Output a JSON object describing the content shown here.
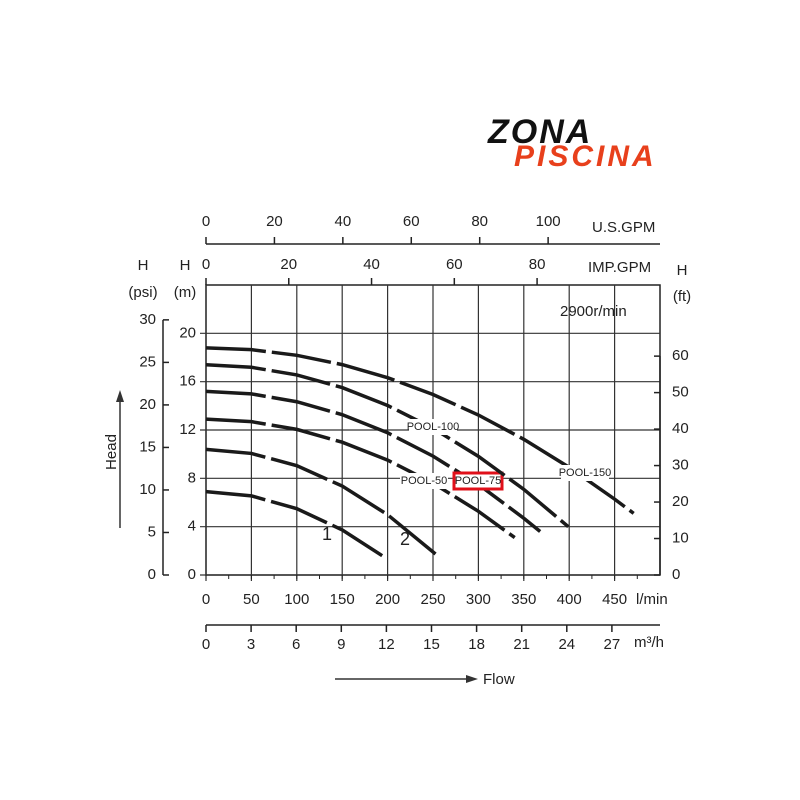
{
  "logo": {
    "line1": "ZONA",
    "line2": "PISCINA"
  },
  "chart_data": {
    "type": "line",
    "annotation": "2900r/min",
    "x_label": "l/min",
    "xlim": [
      0,
      500
    ],
    "xticks": [
      0,
      50,
      100,
      150,
      200,
      250,
      300,
      350,
      400,
      450
    ],
    "y_label_top": "H",
    "y_label": "(m)",
    "ylim": [
      0,
      24
    ],
    "yticks": [
      0,
      4,
      8,
      12,
      16,
      20
    ],
    "y2_label_top": "H",
    "y2_label": "(ft)",
    "y2lim": [
      0,
      79.5
    ],
    "y2ticks": [
      0,
      10,
      20,
      30,
      40,
      50,
      60
    ],
    "y3_label_top": "H",
    "y3_label": "(psi)",
    "y3lim": [
      0,
      34.1
    ],
    "y3ticks": [
      0,
      5,
      10,
      15,
      20,
      25,
      30
    ],
    "x2_label": "m³/h",
    "x2lim": [
      0,
      30.2
    ],
    "x2ticks": [
      0,
      3,
      6,
      9,
      12,
      15,
      18,
      21,
      24,
      27
    ],
    "x3_label": "IMP.GPM",
    "x3lim": [
      0,
      109.7
    ],
    "x3ticks": [
      0,
      20,
      40,
      60,
      80
    ],
    "x4_label": "U.S.GPM",
    "x4lim": [
      0,
      132.7
    ],
    "x4ticks": [
      0,
      20,
      40,
      60,
      80,
      100
    ],
    "head_label": "Head",
    "flow_label": "Flow",
    "grid": true,
    "series": [
      {
        "name": "1",
        "color": "#1a1a1a",
        "x": [
          0,
          50,
          100,
          150,
          194
        ],
        "values": [
          6.9,
          6.55,
          5.49,
          3.73,
          1.6
        ]
      },
      {
        "name": "2",
        "color": "#1a1a1a",
        "x": [
          0,
          50,
          100,
          150,
          200,
          255
        ],
        "values": [
          10.4,
          10.06,
          9.05,
          7.36,
          4.99,
          1.6
        ]
      },
      {
        "name": "POOL-50",
        "color": "#1a1a1a",
        "x": [
          0,
          50,
          100,
          150,
          200,
          250,
          300,
          340
        ],
        "values": [
          12.9,
          12.69,
          12.05,
          10.99,
          9.51,
          7.6,
          5.27,
          3.1
        ]
      },
      {
        "name": "POOL-75",
        "color": "#1a1a1a",
        "highlight": "#e0101a",
        "x": [
          0,
          50,
          100,
          150,
          200,
          250,
          300,
          350,
          368
        ],
        "values": [
          15.2,
          14.99,
          14.34,
          13.27,
          11.77,
          9.84,
          7.49,
          4.7,
          3.6
        ]
      },
      {
        "name": "POOL-100",
        "color": "#1a1a1a",
        "x": [
          0,
          50,
          100,
          150,
          200,
          250,
          300,
          350,
          399
        ],
        "values": [
          17.4,
          17.19,
          16.56,
          15.51,
          14.03,
          12.14,
          9.82,
          7.09,
          4.0
        ]
      },
      {
        "name": "POOL-150",
        "color": "#1a1a1a",
        "x": [
          0,
          50,
          100,
          150,
          200,
          250,
          300,
          350,
          400,
          450,
          471
        ],
        "values": [
          18.8,
          18.65,
          18.18,
          17.41,
          16.33,
          14.94,
          13.24,
          11.23,
          8.91,
          6.28,
          5.1
        ]
      }
    ]
  }
}
